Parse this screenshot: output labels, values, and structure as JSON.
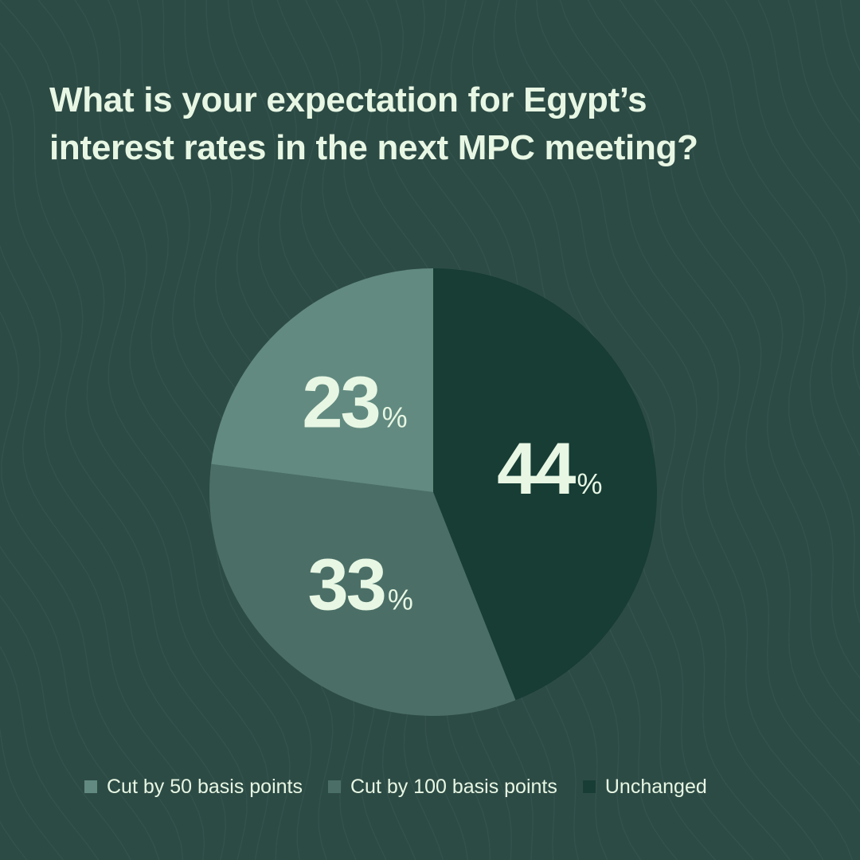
{
  "title_lines": [
    "What is your expectation for Egypt’s",
    "interest rates in the next MPC meeting?"
  ],
  "colors": {
    "background": "#2d4b45",
    "wave_line": "#3a5a53",
    "text": "#e8f7e4"
  },
  "chart_data": {
    "type": "pie",
    "title": "What is your expectation for Egypt’s interest rates in the next MPC meeting?",
    "unit": "%",
    "slices": [
      {
        "label": "Unchanged",
        "value": 44,
        "color": "#173d35"
      },
      {
        "label": "Cut by 100 basis points",
        "value": 33,
        "color": "#4b6f67"
      },
      {
        "label": "Cut by 50 basis points",
        "value": 23,
        "color": "#628a80"
      }
    ],
    "legend_order": [
      {
        "label": "Cut by 50 basis points",
        "color": "#628a80"
      },
      {
        "label": "Cut by 100 basis points",
        "color": "#4b6f67"
      },
      {
        "label": "Unchanged",
        "color": "#173d35"
      }
    ],
    "legend_position": "bottom",
    "start": "top",
    "direction": "clockwise"
  }
}
